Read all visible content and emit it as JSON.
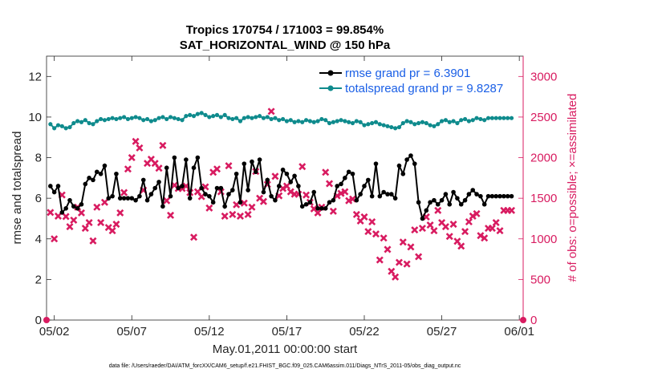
{
  "chart_data": {
    "type": "line",
    "title": "Tropics 170754 / 171003 = 99.854%",
    "subtitle": "SAT_HORIZONTAL_WIND @ 150 hPa",
    "xlabel": "May.01,2011 00:00:00 start",
    "ylabel": "rmse and totalspread",
    "ylabel_right": "# of obs: o=possible; ×=assimilated",
    "footer": "data file: /Users/raeder/DAI/ATM_forcXX/CAM6_setup/f.e21.FHIST_BGC.f09_025.CAM6assim.011/Diags_NTrS_2011-05/obs_diag_output.nc",
    "x_ticks": [
      "05/02",
      "05/07",
      "05/12",
      "05/17",
      "05/22",
      "05/27",
      "06/01"
    ],
    "x_tick_days": [
      1,
      6,
      11,
      16,
      21,
      26,
      31
    ],
    "xlim": [
      0.5,
      31.25
    ],
    "ylim": [
      0,
      13
    ],
    "y_ticks": [
      0,
      2,
      4,
      6,
      8,
      10,
      12
    ],
    "ylim_right": [
      0,
      3250
    ],
    "y_ticks_right": [
      0,
      500,
      1000,
      1500,
      2000,
      2500,
      3000
    ],
    "x_step_days": 0.25,
    "x_start_day": 0.75,
    "series": [
      {
        "name": "rmse",
        "legend": "rmse grand pr = 6.3901",
        "color": "#000000",
        "values": [
          6.6,
          6.3,
          6.6,
          5.3,
          5.5,
          5.9,
          5.6,
          5.5,
          5.7,
          6.7,
          7.0,
          6.9,
          7.3,
          7.2,
          7.6,
          6.0,
          6.1,
          7.2,
          6.0,
          6.0,
          6.0,
          6.0,
          5.9,
          6.1,
          6.9,
          5.9,
          6.2,
          6.5,
          6.8,
          5.6,
          7.5,
          6.1,
          8.0,
          6.5,
          6.6,
          7.9,
          6.0,
          7.5,
          8.0,
          6.5,
          6.2,
          6.1,
          5.8,
          6.5,
          6.5,
          5.6,
          6.2,
          6.4,
          7.2,
          5.8,
          7.7,
          6.4,
          7.8,
          7.3,
          7.9,
          6.3,
          6.9,
          6.1,
          5.9,
          6.6,
          7.4,
          7.2,
          6.8,
          7.1,
          6.6,
          5.6,
          5.7,
          5.8,
          6.3,
          5.5,
          5.5,
          5.5,
          5.8,
          5.9,
          6.6,
          6.7,
          7.0,
          7.3,
          7.2,
          5.9,
          6.2,
          6.6,
          6.9,
          6.1,
          7.7,
          6.1,
          6.3,
          6.2,
          6.2,
          6.0,
          7.6,
          7.2,
          7.9,
          8.1,
          7.7,
          5.8,
          5.0,
          5.4,
          5.8,
          5.9,
          5.7,
          5.9,
          6.2,
          5.7,
          6.3,
          6.0,
          5.7,
          5.9,
          6.2,
          6.4,
          6.2,
          6.1,
          5.7,
          6.1,
          6.1,
          6.1,
          6.1,
          6.1,
          6.1,
          6.1
        ]
      },
      {
        "name": "totalspread",
        "legend": "totalspread grand pr = 9.8287",
        "color": "#0f8b8d",
        "values": [
          9.65,
          9.45,
          9.6,
          9.55,
          9.45,
          9.5,
          9.7,
          9.8,
          9.75,
          9.85,
          9.7,
          9.65,
          9.8,
          9.9,
          9.85,
          9.9,
          9.95,
          9.9,
          9.95,
          10.0,
          9.9,
          9.95,
          10.0,
          9.95,
          9.85,
          9.9,
          9.8,
          9.85,
          9.95,
          10.0,
          9.9,
          10.0,
          9.95,
          9.9,
          9.85,
          10.05,
          10.1,
          10.05,
          10.15,
          10.2,
          10.1,
          10.0,
          10.05,
          10.1,
          10.0,
          10.1,
          9.95,
          9.9,
          9.95,
          9.8,
          9.95,
          10.0,
          9.95,
          10.0,
          10.05,
          9.95,
          10.0,
          9.9,
          9.95,
          9.85,
          9.9,
          9.8,
          9.85,
          9.75,
          9.8,
          9.75,
          9.85,
          9.8,
          9.75,
          9.8,
          9.9,
          9.85,
          9.7,
          9.75,
          9.8,
          9.85,
          9.8,
          9.75,
          9.7,
          9.8,
          9.75,
          9.6,
          9.65,
          9.7,
          9.75,
          9.65,
          9.6,
          9.55,
          9.5,
          9.45,
          9.5,
          9.7,
          9.8,
          9.75,
          9.65,
          9.7,
          9.75,
          9.7,
          9.6,
          9.55,
          9.65,
          9.8,
          9.85,
          9.75,
          9.8,
          9.7,
          9.85,
          9.9,
          9.8,
          9.85,
          9.95,
          9.9,
          9.85,
          9.95,
          9.95,
          9.95,
          9.95,
          9.95,
          9.95,
          9.95
        ]
      },
      {
        "name": "obs assimilated",
        "color": "#d81b60",
        "axis": "right",
        "marker": "x",
        "values": [
          1325,
          1000,
          1280,
          1540,
          1275,
          1150,
          1230,
          1390,
          1320,
          1130,
          1200,
          975,
          1390,
          1200,
          1450,
          1140,
          1100,
          1180,
          1320,
          1570,
          1860,
          2000,
          2200,
          2120,
          1600,
          1930,
          1980,
          1930,
          1870,
          2150,
          1470,
          1290,
          1660,
          1620,
          1620,
          1650,
          1570,
          1020,
          1580,
          1520,
          1640,
          1380,
          1820,
          1860,
          1580,
          1280,
          1900,
          1300,
          1420,
          1280,
          1440,
          1300,
          1390,
          1830,
          1500,
          1460,
          1670,
          2570,
          1770,
          1530,
          1620,
          1650,
          1580,
          1550,
          1550,
          1890,
          1540,
          1450,
          1370,
          1320,
          1390,
          1820,
          1680,
          1340,
          1530,
          1560,
          1580,
          1470,
          1490,
          1300,
          1220,
          1270,
          1090,
          1210,
          1060,
          740,
          1010,
          870,
          600,
          530,
          710,
          960,
          690,
          900,
          1110,
          780,
          1130,
          1270,
          1170,
          1100,
          1350,
          1200,
          1150,
          1030,
          1180,
          970,
          910,
          1090,
          1210,
          1280,
          1310,
          1040,
          1010,
          1130,
          1130,
          1200,
          1100,
          1350,
          1350,
          1350
        ]
      }
    ],
    "obs_possible_endpoints": {
      "left": 0,
      "right": 0
    },
    "legend_position": "top-right"
  }
}
